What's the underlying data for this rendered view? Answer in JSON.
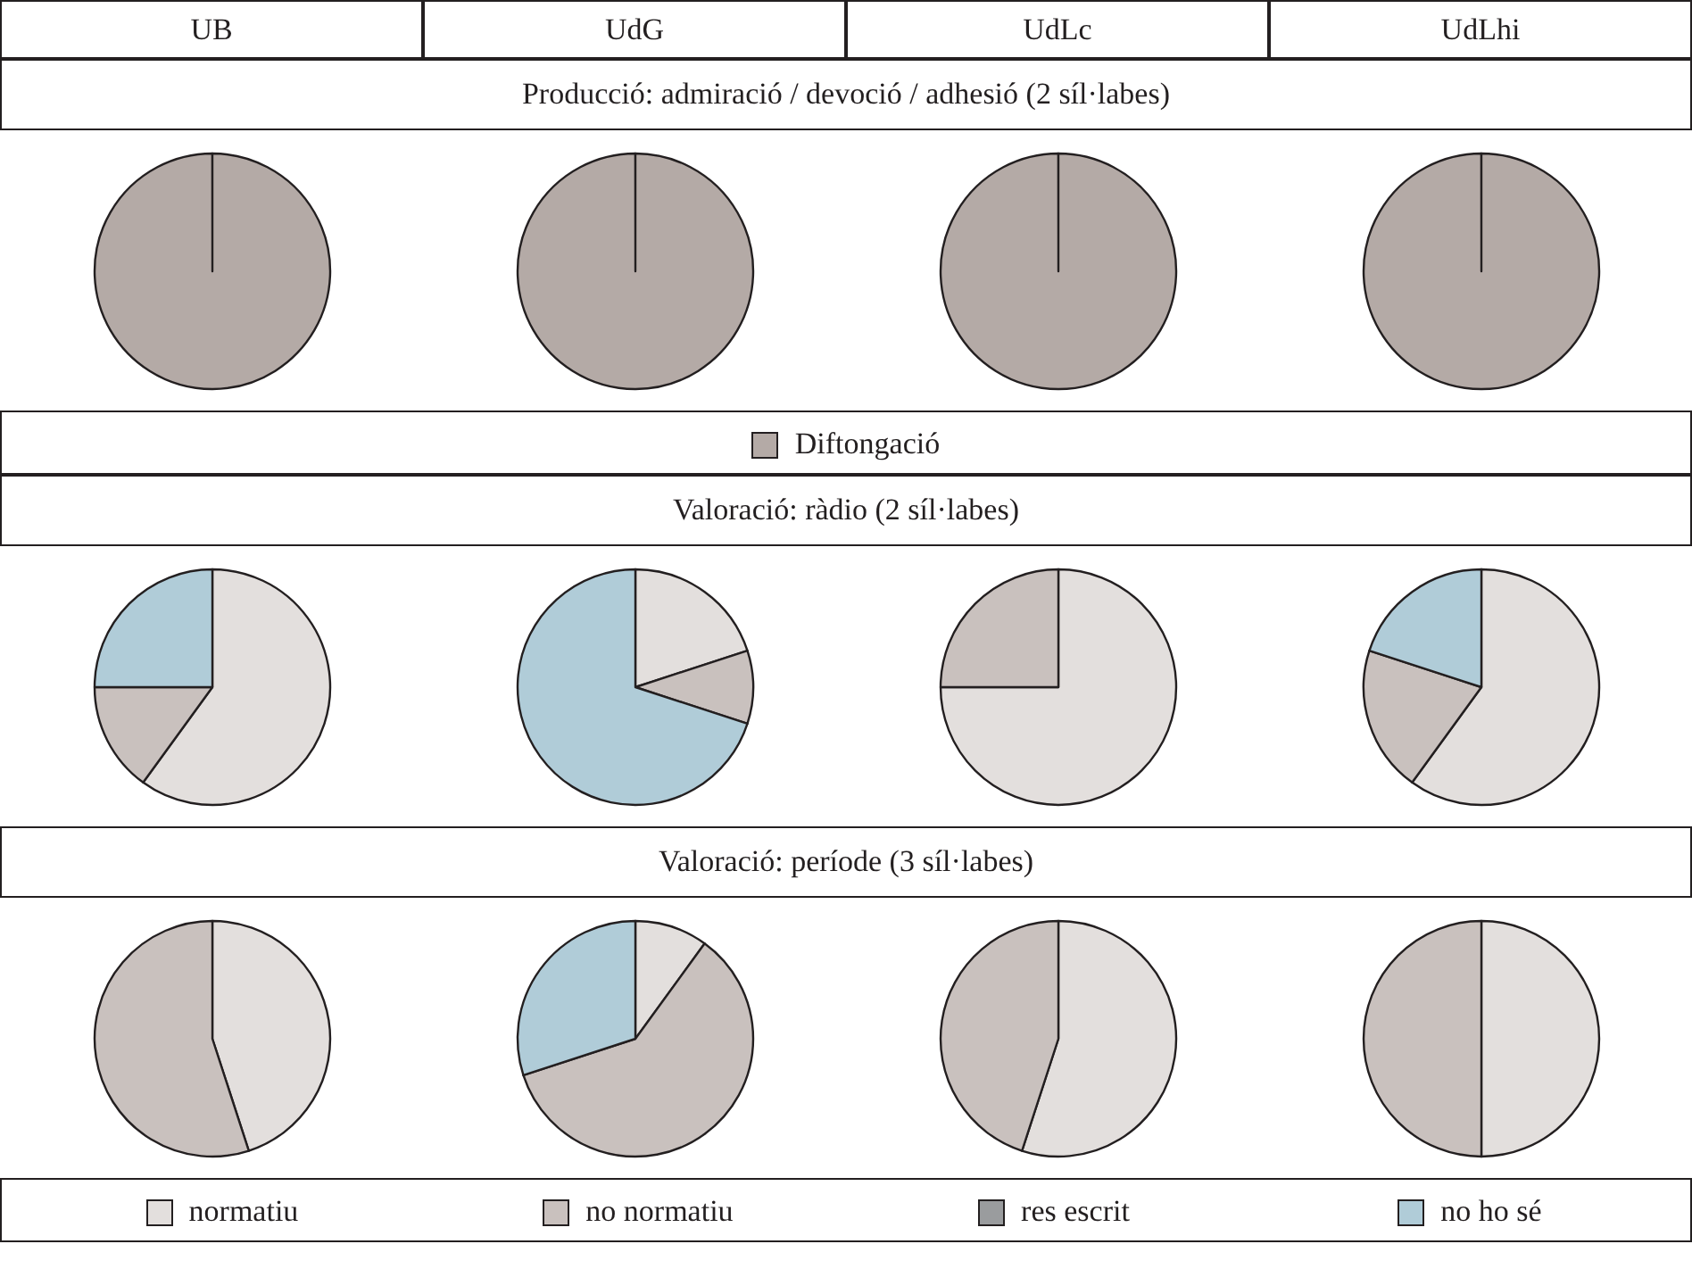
{
  "chart_data": [
    {
      "type": "other",
      "annotations": [
        "UB",
        "UdG",
        "UdLc",
        "UdLhi"
      ]
    },
    {
      "type": "pie",
      "title": "Producció: admiració / devoció / adhesió (2 síl·labes)",
      "categories": [
        "Diftongació"
      ],
      "values": [
        100
      ],
      "colors": [
        "#b4aaa6"
      ],
      "legend": "bottom"
    },
    {
      "type": "pie",
      "categories": [
        null
      ],
      "values": [
        100
      ],
      "colors": [
        "#b4aaa6"
      ]
    },
    {
      "type": "pie",
      "categories": [
        null
      ],
      "values": [
        100
      ],
      "colors": [
        "#b4aaa6"
      ]
    },
    {
      "type": "pie",
      "categories": [
        null
      ],
      "values": [
        100
      ],
      "colors": [
        "#b4aaa6"
      ]
    },
    {
      "type": "pie",
      "title": "Valoració: ràdio (2 síl·labes)",
      "categories": [
        null,
        null,
        null,
        null
      ],
      "values": [
        60,
        15,
        0,
        25
      ],
      "colors": [
        "#e3dfdd",
        "#c9c1be",
        "#9a9c9e",
        "#b0ccd8"
      ]
    },
    {
      "type": "pie",
      "categories": [
        null,
        null,
        null,
        null
      ],
      "values": [
        20,
        10,
        0,
        70
      ],
      "colors": [
        "#e3dfdd",
        "#c9c1be",
        "#9a9c9e",
        "#b0ccd8"
      ]
    },
    {
      "type": "pie",
      "categories": [
        null,
        null,
        null,
        null
      ],
      "values": [
        75,
        25,
        0,
        0
      ],
      "colors": [
        "#e3dfdd",
        "#c9c1be",
        "#9a9c9e",
        "#b0ccd8"
      ]
    },
    {
      "type": "pie",
      "categories": [
        null,
        null,
        null,
        null
      ],
      "values": [
        60,
        20,
        0,
        20
      ],
      "colors": [
        "#e3dfdd",
        "#c9c1be",
        "#9a9c9e",
        "#b0ccd8"
      ]
    },
    {
      "type": "pie",
      "title": "Valoració: període (3 síl·labes)",
      "categories": [
        "normatiu",
        "no normatiu",
        "res escrit",
        "no ho sé"
      ],
      "values": [
        45,
        55,
        0,
        0
      ],
      "colors": [
        "#e3dfdd",
        "#c9c1be",
        "#9a9c9e",
        "#b0ccd8"
      ],
      "legend": "bottom"
    },
    {
      "type": "pie",
      "categories": [
        null,
        null,
        null,
        null
      ],
      "values": [
        10,
        60,
        0,
        30
      ],
      "colors": [
        "#e3dfdd",
        "#c9c1be",
        "#9a9c9e",
        "#b0ccd8"
      ]
    },
    {
      "type": "pie",
      "categories": [
        null,
        null,
        null,
        null
      ],
      "values": [
        55,
        45,
        0,
        0
      ],
      "colors": [
        "#e3dfdd",
        "#c9c1be",
        "#9a9c9e",
        "#b0ccd8"
      ]
    },
    {
      "type": "pie",
      "categories": [
        null,
        null,
        null,
        null
      ],
      "values": [
        50,
        50,
        0,
        0
      ],
      "colors": [
        "#e3dfdd",
        "#c9c1be",
        "#9a9c9e",
        "#b0ccd8"
      ]
    }
  ]
}
